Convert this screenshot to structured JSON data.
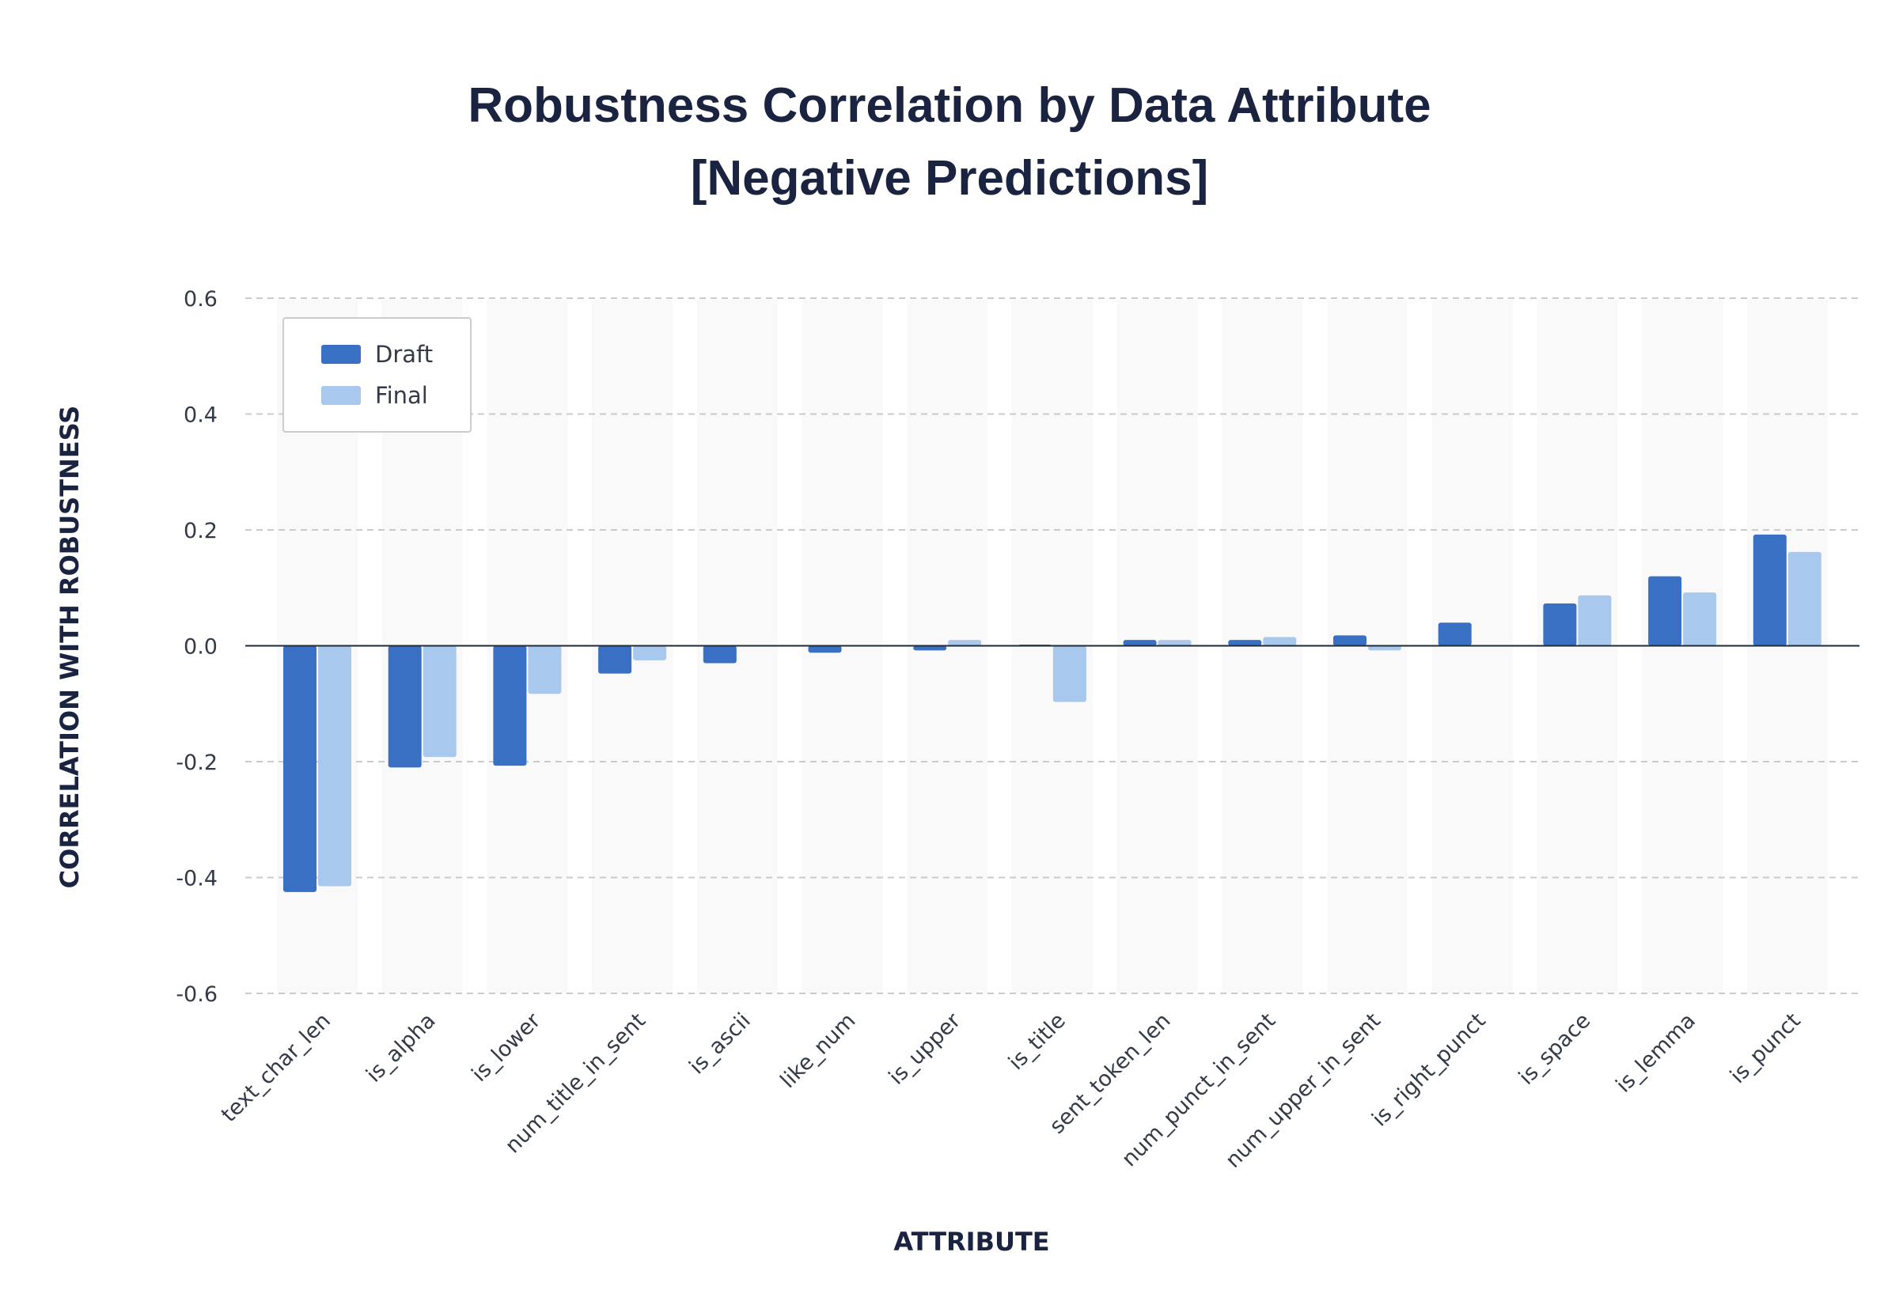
{
  "chart_data": {
    "type": "bar",
    "title": "Robustness Correlation by Data Attribute",
    "subtitle": "[Negative Predictions]",
    "xlabel": "ATTRIBUTE",
    "ylabel": "CORRELATION WITH ROBUSTNESS",
    "ylim": [
      -0.6,
      0.6
    ],
    "yticks": [
      0.6,
      0.4,
      0.2,
      0.0,
      -0.2,
      -0.4,
      -0.6
    ],
    "ytick_labels": [
      "0.6",
      "0.4",
      "0.2",
      "0.0",
      "-0.2",
      "-0.4",
      "-0.6"
    ],
    "grid": true,
    "legend_position": "top-left",
    "categories": [
      "text_char_len",
      "is_alpha",
      "is_lower",
      "num_title_in_sent",
      "is_ascii",
      "like_num",
      "is_upper",
      "is_title",
      "sent_token_len",
      "num_punct_in_sent",
      "num_upper_in_sent",
      "is_right_punct",
      "is_space",
      "is_lemma",
      "is_punct"
    ],
    "series": [
      {
        "name": "Draft",
        "color": "#3a70c4",
        "values": [
          -0.425,
          -0.21,
          -0.207,
          -0.048,
          -0.03,
          -0.012,
          -0.008,
          0.002,
          0.01,
          0.01,
          0.018,
          0.04,
          0.073,
          0.12,
          0.192
        ]
      },
      {
        "name": "Final",
        "color": "#a8c8ee",
        "values": [
          -0.415,
          -0.192,
          -0.083,
          -0.025,
          0.0,
          0.0,
          0.01,
          -0.097,
          0.01,
          0.015,
          -0.008,
          0.0,
          0.087,
          0.092,
          0.162
        ]
      }
    ]
  }
}
